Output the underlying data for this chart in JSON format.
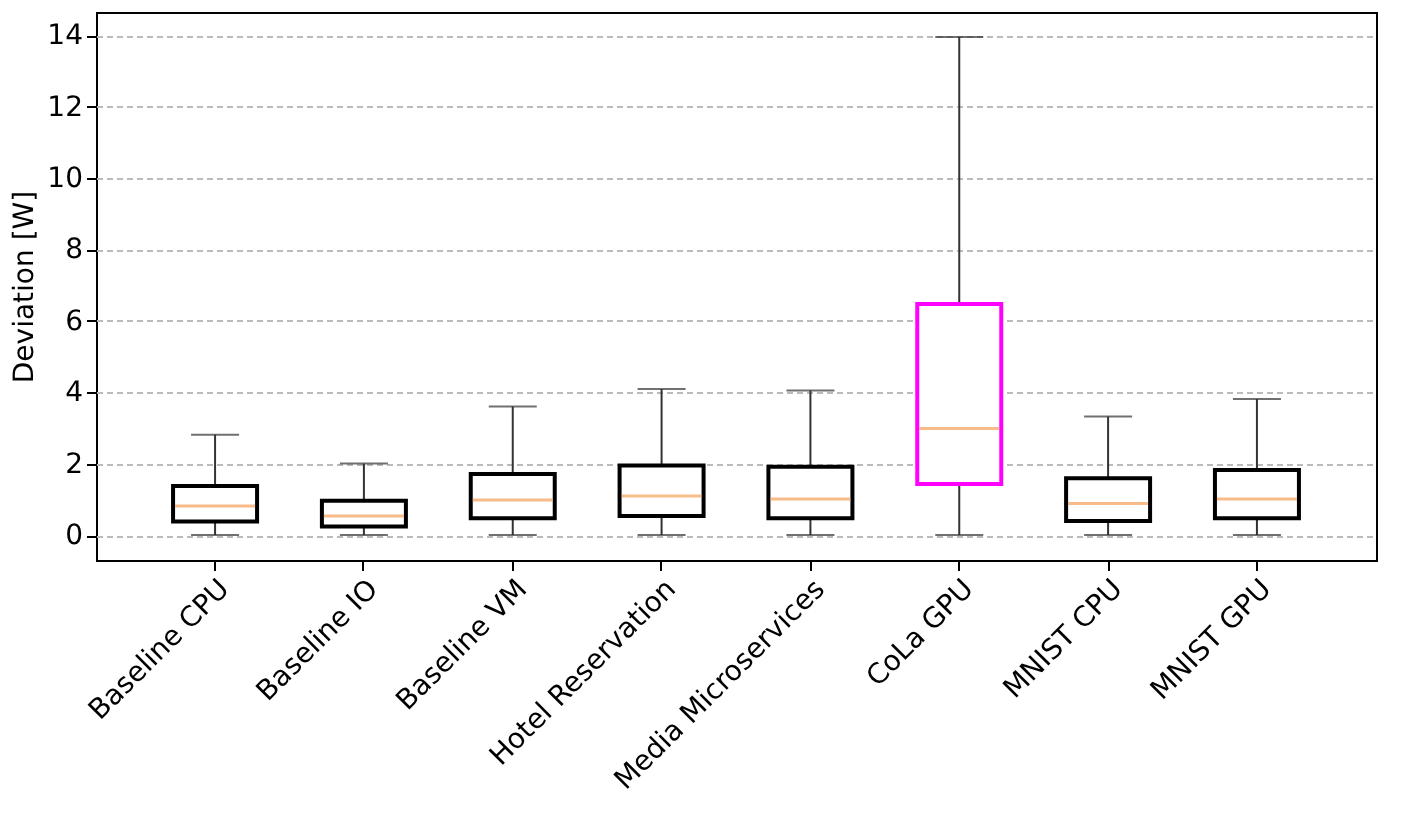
{
  "chart_data": {
    "type": "box",
    "ylabel": "Deviation [W]",
    "categories": [
      "Baseline CPU",
      "Baseline IO",
      "Baseline VM",
      "Hotel Reservation",
      "Media Microservices",
      "CoLa GPU",
      "MNIST CPU",
      "MNIST GPU"
    ],
    "colors": [
      "#000000",
      "#000000",
      "#000000",
      "#000000",
      "#000000",
      "#ff00ff",
      "#000000",
      "#000000"
    ],
    "boxes": [
      {
        "low": 0,
        "q1": 0.38,
        "median": 0.81,
        "q3": 1.37,
        "high": 2.81
      },
      {
        "low": 0,
        "q1": 0.24,
        "median": 0.53,
        "q3": 0.96,
        "high": 2.0
      },
      {
        "low": 0,
        "q1": 0.47,
        "median": 0.98,
        "q3": 1.71,
        "high": 3.6
      },
      {
        "low": 0,
        "q1": 0.53,
        "median": 1.09,
        "q3": 1.95,
        "high": 4.09
      },
      {
        "low": 0,
        "q1": 0.47,
        "median": 1.01,
        "q3": 1.91,
        "high": 4.05
      },
      {
        "low": 0,
        "q1": 1.43,
        "median": 2.98,
        "q3": 6.47,
        "high": 13.95
      },
      {
        "low": 0,
        "q1": 0.39,
        "median": 0.88,
        "q3": 1.59,
        "high": 3.32
      },
      {
        "low": 0,
        "q1": 0.47,
        "median": 1.01,
        "q3": 1.82,
        "high": 3.81
      }
    ],
    "ylim": [
      -0.7,
      14.65
    ],
    "yticks": [
      0,
      2,
      4,
      6,
      8,
      10,
      12,
      14
    ],
    "grid": "y"
  }
}
